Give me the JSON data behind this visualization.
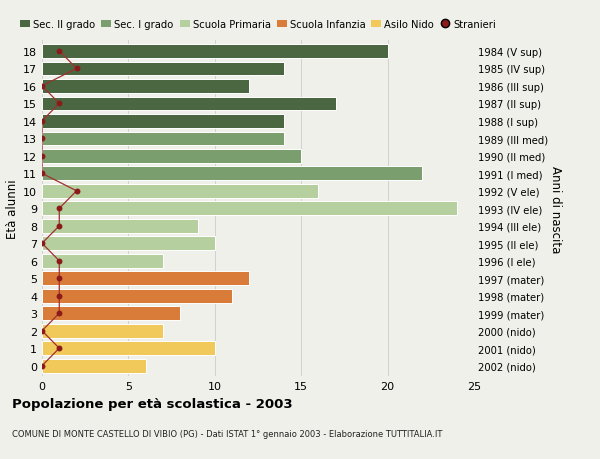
{
  "ages": [
    18,
    17,
    16,
    15,
    14,
    13,
    12,
    11,
    10,
    9,
    8,
    7,
    6,
    5,
    4,
    3,
    2,
    1,
    0
  ],
  "years": [
    "1984 (V sup)",
    "1985 (IV sup)",
    "1986 (III sup)",
    "1987 (II sup)",
    "1988 (I sup)",
    "1989 (III med)",
    "1990 (II med)",
    "1991 (I med)",
    "1992 (V ele)",
    "1993 (IV ele)",
    "1994 (III ele)",
    "1995 (II ele)",
    "1996 (I ele)",
    "1997 (mater)",
    "1998 (mater)",
    "1999 (mater)",
    "2000 (nido)",
    "2001 (nido)",
    "2002 (nido)"
  ],
  "bar_values": [
    20,
    14,
    12,
    17,
    14,
    14,
    15,
    22,
    16,
    24,
    9,
    10,
    7,
    12,
    11,
    8,
    7,
    10,
    6
  ],
  "bar_colors": [
    "#4a6741",
    "#4a6741",
    "#4a6741",
    "#4a6741",
    "#4a6741",
    "#7a9e6e",
    "#7a9e6e",
    "#7a9e6e",
    "#b5cf9e",
    "#b5cf9e",
    "#b5cf9e",
    "#b5cf9e",
    "#b5cf9e",
    "#d97c3a",
    "#d97c3a",
    "#d97c3a",
    "#f0c95a",
    "#f0c95a",
    "#f0c95a"
  ],
  "stranieri": [
    1,
    2,
    0,
    1,
    0,
    0,
    0,
    0,
    2,
    1,
    1,
    0,
    1,
    1,
    1,
    1,
    0,
    1,
    0
  ],
  "stranieri_dot_color": "#8b1a1a",
  "stranieri_line_color": "#a03030",
  "ylabel": "Età alunni",
  "ylabel_right": "Anni di nascita",
  "title": "Popolazione per età scolastica - 2003",
  "subtitle": "COMUNE DI MONTE CASTELLO DI VIBIO (PG) - Dati ISTAT 1° gennaio 2003 - Elaborazione TUTTITALIA.IT",
  "xlim": [
    0,
    25
  ],
  "xticks": [
    0,
    5,
    10,
    15,
    20,
    25
  ],
  "legend_labels": [
    "Sec. II grado",
    "Sec. I grado",
    "Scuola Primaria",
    "Scuola Infanzia",
    "Asilo Nido",
    "Stranieri"
  ],
  "legend_colors": [
    "#4a6741",
    "#7a9e6e",
    "#b5cf9e",
    "#d97c3a",
    "#f0c95a",
    "#8b1a1a"
  ],
  "bg_color": "#f0f0ea",
  "fig_width": 6.0,
  "fig_height": 4.6,
  "dpi": 100
}
